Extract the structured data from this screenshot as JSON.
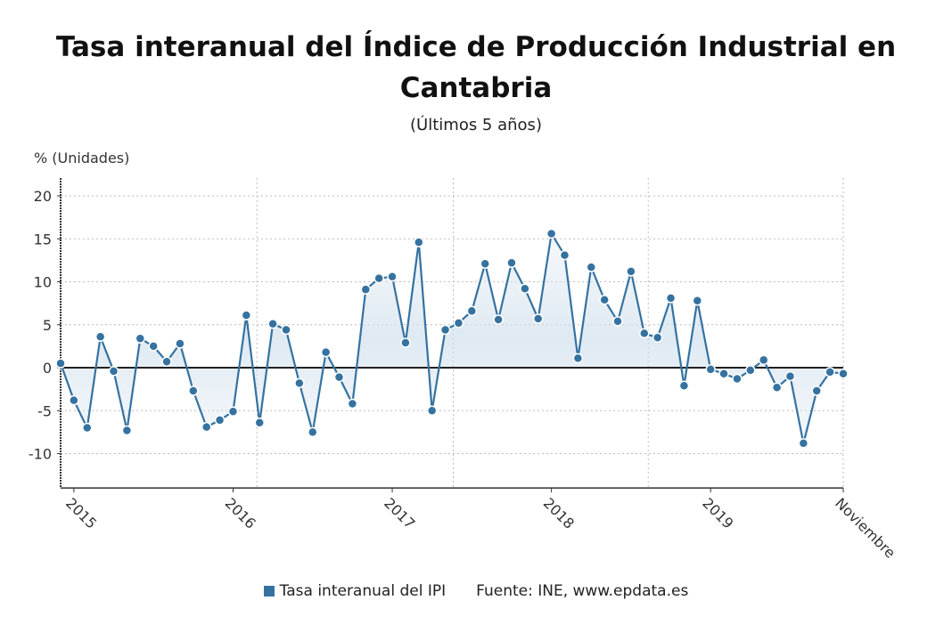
{
  "chart_data": {
    "type": "line",
    "title": "Tasa interanual del Índice de Producción Industrial en Cantabria",
    "subtitle": "(Últimos 5 años)",
    "ylabel": "% (Unidades)",
    "xlabel": "",
    "ylim": [
      -14,
      22
    ],
    "yticks": [
      20,
      15,
      10,
      5,
      0,
      -5,
      -10
    ],
    "grid": true,
    "legend_position": "bottom",
    "x_tick_labels": [
      {
        "index": 1,
        "label": "2015"
      },
      {
        "index": 13,
        "label": "2016"
      },
      {
        "index": 25,
        "label": "2017"
      },
      {
        "index": 37,
        "label": "2018"
      },
      {
        "index": 49,
        "label": "2019"
      },
      {
        "index": 59,
        "label": "Noviembre"
      }
    ],
    "x_range": [
      "2014-12",
      "2019-11"
    ],
    "series": [
      {
        "name": "Tasa interanual del IPI",
        "color": "#3572a0",
        "values": [
          0.5,
          -3.8,
          -7.0,
          3.6,
          -0.4,
          -7.3,
          3.4,
          2.5,
          0.7,
          2.8,
          -2.7,
          -6.9,
          -6.1,
          -5.1,
          6.1,
          -6.4,
          5.1,
          4.4,
          -1.8,
          -7.5,
          1.8,
          -1.1,
          -4.2,
          9.1,
          10.4,
          10.6,
          2.9,
          14.6,
          -5.0,
          4.4,
          5.2,
          6.6,
          12.1,
          5.6,
          12.2,
          9.2,
          5.7,
          15.6,
          13.1,
          1.1,
          11.7,
          7.9,
          5.4,
          11.2,
          4.0,
          3.5,
          8.1,
          -2.1,
          7.8,
          -0.2,
          -0.7,
          -1.3,
          -0.3,
          0.9,
          -2.3,
          -1.0,
          -8.8,
          -2.7,
          -0.5,
          -0.7
        ]
      }
    ],
    "source": "Fuente: INE, www.epdata.es"
  }
}
